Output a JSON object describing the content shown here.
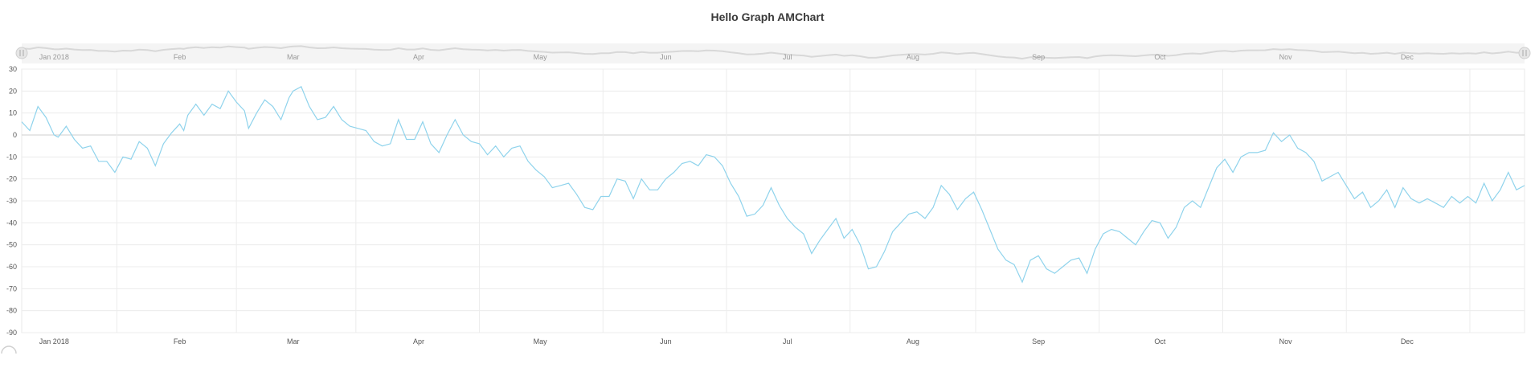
{
  "chart_data": {
    "type": "line",
    "title": "Hello Graph AMChart",
    "xlabel": "",
    "ylabel": "",
    "ylim": [
      -90,
      30
    ],
    "y_ticks": [
      30,
      20,
      10,
      0,
      -10,
      -20,
      -30,
      -40,
      -50,
      -60,
      -70,
      -80,
      -90
    ],
    "x_range": [
      "2017-12-24",
      "2018-12-30"
    ],
    "x_ticks": [
      {
        "label": "Jan 2018",
        "date": "2018-01-01"
      },
      {
        "label": "Feb",
        "date": "2018-02-01"
      },
      {
        "label": "Mar",
        "date": "2018-03-01"
      },
      {
        "label": "Apr",
        "date": "2018-04-01"
      },
      {
        "label": "May",
        "date": "2018-05-01"
      },
      {
        "label": "Jun",
        "date": "2018-06-01"
      },
      {
        "label": "Jul",
        "date": "2018-07-01"
      },
      {
        "label": "Aug",
        "date": "2018-08-01"
      },
      {
        "label": "Sep",
        "date": "2018-09-01"
      },
      {
        "label": "Oct",
        "date": "2018-10-01"
      },
      {
        "label": "Nov",
        "date": "2018-11-01"
      },
      {
        "label": "Dec",
        "date": "2018-12-01"
      }
    ],
    "grid": true,
    "scrollbar": true,
    "series_color": "#8fd3ec",
    "series": [
      {
        "points": [
          [
            "2017-12-24",
            6
          ],
          [
            "2017-12-26",
            2
          ],
          [
            "2017-12-28",
            13
          ],
          [
            "2017-12-30",
            8
          ],
          [
            "2018-01-01",
            0
          ],
          [
            "2018-01-02",
            -1
          ],
          [
            "2018-01-04",
            4
          ],
          [
            "2018-01-06",
            -2
          ],
          [
            "2018-01-08",
            -6
          ],
          [
            "2018-01-10",
            -5
          ],
          [
            "2018-01-12",
            -12
          ],
          [
            "2018-01-14",
            -12
          ],
          [
            "2018-01-16",
            -17
          ],
          [
            "2018-01-18",
            -10
          ],
          [
            "2018-01-20",
            -11
          ],
          [
            "2018-01-22",
            -3
          ],
          [
            "2018-01-24",
            -6
          ],
          [
            "2018-01-26",
            -14
          ],
          [
            "2018-01-28",
            -4
          ],
          [
            "2018-01-30",
            1
          ],
          [
            "2018-02-01",
            5
          ],
          [
            "2018-02-02",
            2
          ],
          [
            "2018-02-03",
            9
          ],
          [
            "2018-02-05",
            14
          ],
          [
            "2018-02-07",
            9
          ],
          [
            "2018-02-09",
            14
          ],
          [
            "2018-02-11",
            12
          ],
          [
            "2018-02-13",
            20
          ],
          [
            "2018-02-15",
            15
          ],
          [
            "2018-02-17",
            11
          ],
          [
            "2018-02-18",
            3
          ],
          [
            "2018-02-20",
            10
          ],
          [
            "2018-02-22",
            16
          ],
          [
            "2018-02-24",
            13
          ],
          [
            "2018-02-26",
            7
          ],
          [
            "2018-02-28",
            17
          ],
          [
            "2018-03-01",
            20
          ],
          [
            "2018-03-03",
            22
          ],
          [
            "2018-03-05",
            13
          ],
          [
            "2018-03-07",
            7
          ],
          [
            "2018-03-09",
            8
          ],
          [
            "2018-03-11",
            13
          ],
          [
            "2018-03-13",
            7
          ],
          [
            "2018-03-15",
            4
          ],
          [
            "2018-03-17",
            3
          ],
          [
            "2018-03-19",
            2
          ],
          [
            "2018-03-21",
            -3
          ],
          [
            "2018-03-23",
            -5
          ],
          [
            "2018-03-25",
            -4
          ],
          [
            "2018-03-27",
            7
          ],
          [
            "2018-03-29",
            -2
          ],
          [
            "2018-03-31",
            -2
          ],
          [
            "2018-04-02",
            6
          ],
          [
            "2018-04-04",
            -4
          ],
          [
            "2018-04-06",
            -8
          ],
          [
            "2018-04-08",
            0
          ],
          [
            "2018-04-10",
            7
          ],
          [
            "2018-04-12",
            0
          ],
          [
            "2018-04-14",
            -3
          ],
          [
            "2018-04-16",
            -4
          ],
          [
            "2018-04-18",
            -9
          ],
          [
            "2018-04-20",
            -5
          ],
          [
            "2018-04-22",
            -10
          ],
          [
            "2018-04-24",
            -6
          ],
          [
            "2018-04-26",
            -5
          ],
          [
            "2018-04-28",
            -12
          ],
          [
            "2018-04-30",
            -16
          ],
          [
            "2018-05-02",
            -19
          ],
          [
            "2018-05-04",
            -24
          ],
          [
            "2018-05-06",
            -23
          ],
          [
            "2018-05-08",
            -22
          ],
          [
            "2018-05-10",
            -27
          ],
          [
            "2018-05-12",
            -33
          ],
          [
            "2018-05-14",
            -34
          ],
          [
            "2018-05-16",
            -28
          ],
          [
            "2018-05-18",
            -28
          ],
          [
            "2018-05-20",
            -20
          ],
          [
            "2018-05-22",
            -21
          ],
          [
            "2018-05-24",
            -29
          ],
          [
            "2018-05-26",
            -20
          ],
          [
            "2018-05-28",
            -25
          ],
          [
            "2018-05-30",
            -25
          ],
          [
            "2018-06-01",
            -20
          ],
          [
            "2018-06-03",
            -17
          ],
          [
            "2018-06-05",
            -13
          ],
          [
            "2018-06-07",
            -12
          ],
          [
            "2018-06-09",
            -14
          ],
          [
            "2018-06-11",
            -9
          ],
          [
            "2018-06-13",
            -10
          ],
          [
            "2018-06-15",
            -14
          ],
          [
            "2018-06-17",
            -22
          ],
          [
            "2018-06-19",
            -28
          ],
          [
            "2018-06-21",
            -37
          ],
          [
            "2018-06-23",
            -36
          ],
          [
            "2018-06-25",
            -32
          ],
          [
            "2018-06-27",
            -24
          ],
          [
            "2018-06-29",
            -32
          ],
          [
            "2018-07-01",
            -38
          ],
          [
            "2018-07-03",
            -42
          ],
          [
            "2018-07-05",
            -45
          ],
          [
            "2018-07-07",
            -54
          ],
          [
            "2018-07-09",
            -48
          ],
          [
            "2018-07-11",
            -43
          ],
          [
            "2018-07-13",
            -38
          ],
          [
            "2018-07-15",
            -47
          ],
          [
            "2018-07-17",
            -43
          ],
          [
            "2018-07-19",
            -50
          ],
          [
            "2018-07-21",
            -61
          ],
          [
            "2018-07-23",
            -60
          ],
          [
            "2018-07-25",
            -53
          ],
          [
            "2018-07-27",
            -44
          ],
          [
            "2018-07-29",
            -40
          ],
          [
            "2018-07-31",
            -36
          ],
          [
            "2018-08-02",
            -35
          ],
          [
            "2018-08-04",
            -38
          ],
          [
            "2018-08-06",
            -33
          ],
          [
            "2018-08-08",
            -23
          ],
          [
            "2018-08-10",
            -27
          ],
          [
            "2018-08-12",
            -34
          ],
          [
            "2018-08-14",
            -29
          ],
          [
            "2018-08-16",
            -26
          ],
          [
            "2018-08-18",
            -34
          ],
          [
            "2018-08-20",
            -43
          ],
          [
            "2018-08-22",
            -52
          ],
          [
            "2018-08-24",
            -57
          ],
          [
            "2018-08-26",
            -59
          ],
          [
            "2018-08-28",
            -67
          ],
          [
            "2018-08-30",
            -57
          ],
          [
            "2018-09-01",
            -55
          ],
          [
            "2018-09-03",
            -61
          ],
          [
            "2018-09-05",
            -63
          ],
          [
            "2018-09-07",
            -60
          ],
          [
            "2018-09-09",
            -57
          ],
          [
            "2018-09-11",
            -56
          ],
          [
            "2018-09-13",
            -63
          ],
          [
            "2018-09-15",
            -52
          ],
          [
            "2018-09-17",
            -45
          ],
          [
            "2018-09-19",
            -43
          ],
          [
            "2018-09-21",
            -44
          ],
          [
            "2018-09-23",
            -47
          ],
          [
            "2018-09-25",
            -50
          ],
          [
            "2018-09-27",
            -44
          ],
          [
            "2018-09-29",
            -39
          ],
          [
            "2018-10-01",
            -40
          ],
          [
            "2018-10-03",
            -47
          ],
          [
            "2018-10-05",
            -42
          ],
          [
            "2018-10-07",
            -33
          ],
          [
            "2018-10-09",
            -30
          ],
          [
            "2018-10-11",
            -33
          ],
          [
            "2018-10-13",
            -24
          ],
          [
            "2018-10-15",
            -15
          ],
          [
            "2018-10-17",
            -11
          ],
          [
            "2018-10-19",
            -17
          ],
          [
            "2018-10-21",
            -10
          ],
          [
            "2018-10-23",
            -8
          ],
          [
            "2018-10-25",
            -8
          ],
          [
            "2018-10-27",
            -7
          ],
          [
            "2018-10-29",
            1
          ],
          [
            "2018-10-31",
            -3
          ],
          [
            "2018-11-02",
            0
          ],
          [
            "2018-11-04",
            -6
          ],
          [
            "2018-11-06",
            -8
          ],
          [
            "2018-11-08",
            -12
          ],
          [
            "2018-11-10",
            -21
          ],
          [
            "2018-11-12",
            -19
          ],
          [
            "2018-11-14",
            -17
          ],
          [
            "2018-11-16",
            -23
          ],
          [
            "2018-11-18",
            -29
          ],
          [
            "2018-11-20",
            -26
          ],
          [
            "2018-11-22",
            -33
          ],
          [
            "2018-11-24",
            -30
          ],
          [
            "2018-11-26",
            -25
          ],
          [
            "2018-11-28",
            -33
          ],
          [
            "2018-11-30",
            -24
          ],
          [
            "2018-12-02",
            -29
          ],
          [
            "2018-12-04",
            -31
          ],
          [
            "2018-12-06",
            -29
          ],
          [
            "2018-12-08",
            -31
          ],
          [
            "2018-12-10",
            -33
          ],
          [
            "2018-12-12",
            -28
          ],
          [
            "2018-12-14",
            -31
          ],
          [
            "2018-12-16",
            -28
          ],
          [
            "2018-12-18",
            -31
          ],
          [
            "2018-12-20",
            -22
          ],
          [
            "2018-12-22",
            -30
          ],
          [
            "2018-12-24",
            -25
          ],
          [
            "2018-12-26",
            -17
          ],
          [
            "2018-12-28",
            -25
          ],
          [
            "2018-12-30",
            -23
          ]
        ]
      }
    ]
  }
}
